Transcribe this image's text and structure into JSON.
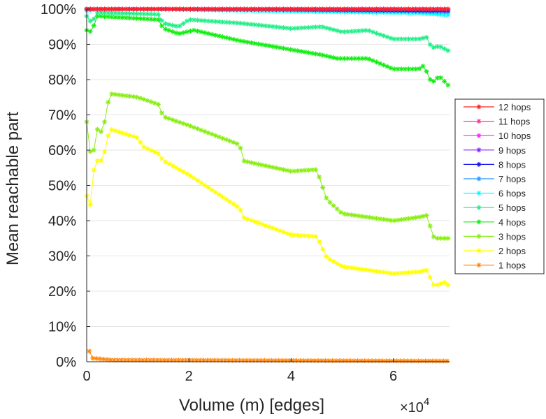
{
  "chart_data": {
    "type": "line",
    "title": "",
    "xlabel": "Volume (m) [edges]",
    "ylabel": "Mean reachable part",
    "x_multiplier_label": "×10",
    "x_multiplier_exp": "4",
    "xlim": [
      0,
      7.1
    ],
    "ylim": [
      0,
      100
    ],
    "xticks": [
      "0",
      "2",
      "4",
      "6"
    ],
    "xtick_values": [
      0,
      2,
      4,
      6
    ],
    "yticks": [
      "0%",
      "10%",
      "20%",
      "30%",
      "40%",
      "50%",
      "60%",
      "70%",
      "80%",
      "90%",
      "100%"
    ],
    "ytick_values": [
      0,
      10,
      20,
      30,
      40,
      50,
      60,
      70,
      80,
      90,
      100
    ],
    "grid": true,
    "legend_position": "right",
    "series": [
      {
        "name": "12 hops",
        "color": "#ff2020",
        "x": [
          0,
          7.1
        ],
        "y": [
          100,
          100
        ]
      },
      {
        "name": "11 hops",
        "color": "#ff3399",
        "x": [
          0,
          7.1
        ],
        "y": [
          100,
          100
        ]
      },
      {
        "name": "10 hops",
        "color": "#ff22ff",
        "x": [
          0,
          7.1
        ],
        "y": [
          100,
          100
        ]
      },
      {
        "name": "9 hops",
        "color": "#8822ff",
        "x": [
          0,
          7.1
        ],
        "y": [
          100,
          100
        ]
      },
      {
        "name": "8 hops",
        "color": "#1111ee",
        "x": [
          0,
          1.5,
          4,
          7.1
        ],
        "y": [
          100,
          100,
          99.9,
          99.6
        ]
      },
      {
        "name": "7 hops",
        "color": "#2299ff",
        "x": [
          0,
          2,
          4,
          6,
          7.1
        ],
        "y": [
          100,
          100,
          99.8,
          99.5,
          99.2
        ]
      },
      {
        "name": "6 hops",
        "color": "#00ffff",
        "x": [
          0,
          0.2,
          1.5,
          3,
          5,
          6.5,
          7.1
        ],
        "y": [
          99.5,
          100,
          100,
          99.6,
          99.2,
          98.9,
          98.3
        ]
      },
      {
        "name": "5 hops",
        "color": "#22ee88",
        "x": [
          0,
          0.1,
          0.2,
          1.4,
          1.5,
          1.8,
          2.0,
          3.0,
          4.0,
          4.6,
          5.0,
          5.5,
          6.0,
          6.5,
          6.65,
          6.75,
          6.9,
          7.1
        ],
        "y": [
          98,
          96,
          99,
          98.5,
          96,
          95,
          97,
          96,
          94.5,
          95,
          93.5,
          94,
          91.5,
          91.5,
          92,
          89,
          89.5,
          88
        ]
      },
      {
        "name": "4 hops",
        "color": "#11ee11",
        "x": [
          0,
          0.1,
          0.2,
          1.4,
          1.5,
          1.8,
          2.1,
          3.0,
          4.0,
          4.6,
          4.9,
          5.5,
          6.0,
          6.5,
          6.6,
          6.75,
          6.9,
          7.1
        ],
        "y": [
          94,
          93.5,
          98,
          97,
          94.5,
          93,
          94,
          91,
          88.5,
          87,
          86,
          86,
          83,
          83,
          84,
          79,
          81,
          78
        ]
      },
      {
        "name": "3 hops",
        "color": "#88ee11",
        "x": [
          0,
          0.1,
          0.2,
          0.3,
          0.35,
          0.45,
          1.0,
          1.4,
          1.5,
          2.0,
          3.0,
          3.05,
          4.0,
          4.5,
          4.7,
          5.0,
          5.5,
          6.0,
          6.5,
          6.65,
          6.8,
          7.1
        ],
        "y": [
          68,
          56,
          66,
          65,
          68,
          76,
          75,
          73,
          69.5,
          67,
          61.5,
          57,
          54,
          54.5,
          46,
          42,
          41,
          40,
          41,
          41.5,
          35,
          35
        ]
      },
      {
        "name": "2 hops",
        "color": "#ffff00",
        "x": [
          0,
          0.1,
          0.15,
          0.3,
          0.35,
          0.45,
          1.0,
          1.1,
          1.4,
          1.5,
          2.0,
          3.0,
          3.05,
          4.0,
          4.5,
          4.7,
          5.0,
          5.5,
          6.0,
          6.5,
          6.65,
          6.8,
          7.0,
          7.1
        ],
        "y": [
          47,
          43.5,
          57,
          57,
          59.5,
          66,
          63.5,
          61,
          59,
          57,
          53,
          43.5,
          41,
          36,
          35.5,
          29.5,
          27,
          26,
          25,
          25.5,
          26,
          21.5,
          22.5,
          21.5
        ]
      },
      {
        "name": "1 hops",
        "color": "#ff8811",
        "x": [
          0.05,
          0.12,
          0.5,
          7.1
        ],
        "y": [
          3,
          1,
          0.5,
          0.2
        ]
      }
    ]
  }
}
